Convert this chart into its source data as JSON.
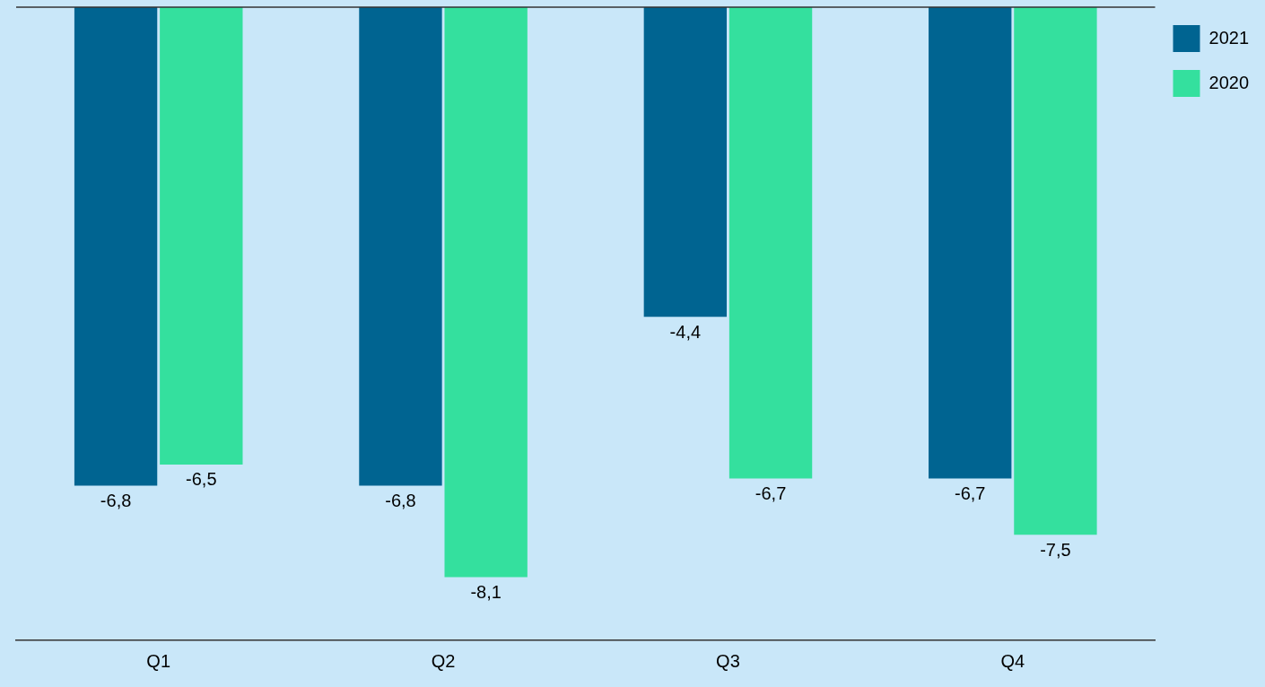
{
  "chart_data": {
    "type": "bar",
    "categories": [
      "Q1",
      "Q2",
      "Q3",
      "Q4"
    ],
    "series": [
      {
        "name": "2021",
        "color": "#006491",
        "values": [
          -6.8,
          -6.8,
          -4.4,
          -6.7
        ],
        "value_labels": [
          "-6,8",
          "-6,8",
          "-4,4",
          "-6,7"
        ]
      },
      {
        "name": "2020",
        "color": "#34e09e",
        "values": [
          -6.5,
          -8.1,
          -6.7,
          -7.5
        ],
        "value_labels": [
          "-6,5",
          "-8,1",
          "-6,7",
          "-7,5"
        ]
      }
    ],
    "tick_labels": "x",
    "grid": false,
    "legend": "right",
    "ref_lines": [
      {
        "axis": "y",
        "value": 0
      }
    ]
  }
}
